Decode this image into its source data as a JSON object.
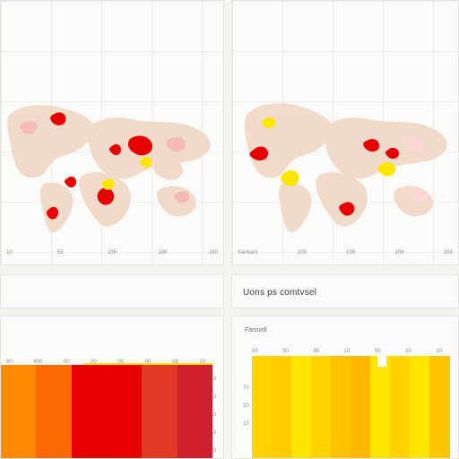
{
  "panels": {
    "left_map": {
      "axis_ticks": [
        "10",
        "53",
        "105",
        "188",
        "240"
      ]
    },
    "right_map": {
      "axis_ticks": [
        "Sankarn",
        "105",
        "105",
        "208",
        "204"
      ]
    },
    "middle_card": {
      "title": "Uons ps comtvsel"
    },
    "bottom_left": {
      "top_ticks": [
        "80",
        "400",
        "00",
        "00",
        "00",
        "00",
        "08",
        "10"
      ],
      "right_ticks": [
        "10",
        "10",
        "10",
        "10",
        "10",
        "10"
      ]
    },
    "bottom_right": {
      "label": "Fansvdl",
      "top_ticks": [
        "00",
        "30",
        "80",
        "10",
        "00",
        "10",
        "10"
      ],
      "left_ticks": [
        "70",
        "10",
        "10"
      ]
    }
  },
  "colors": {
    "land": "#f2d9c9",
    "red": "#e60000",
    "yellow": "#ffe600",
    "orange": "#ff8a00",
    "deep_red": "#cf1f2d"
  },
  "chart_data": [
    {
      "type": "bar",
      "categories": [
        "",
        "",
        "",
        "",
        "",
        ""
      ],
      "values": [
        1,
        1,
        1,
        1,
        1,
        1
      ]
    },
    {
      "type": "bar",
      "categories": [
        "",
        "",
        "",
        "",
        "",
        "",
        "",
        "",
        "",
        ""
      ],
      "values": [
        1,
        1,
        1,
        1,
        1,
        1,
        1,
        1,
        1,
        1
      ]
    }
  ]
}
